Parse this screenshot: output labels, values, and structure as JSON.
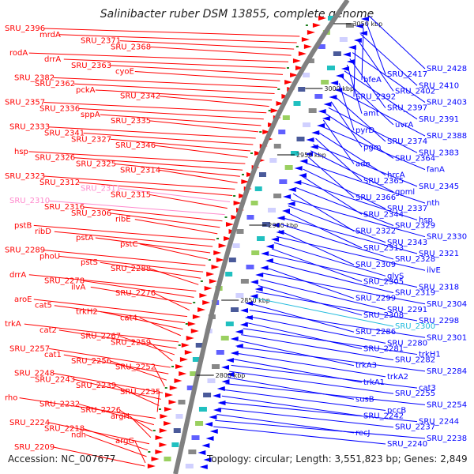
{
  "title": "Salinibacter ruber DSM 13855, complete genome",
  "accession": "Accession: NC_007677",
  "topology": "Topology: circular; Length: 3,551,823 bp; Genes: 2,849",
  "colors": {
    "forward_strand": "#ff0000",
    "reverse_strand": "#0000ff",
    "highlight_pink": "#ff88cc",
    "highlight_cyan": "#22bbdd",
    "genome_circle": "#808080"
  },
  "kbp_markers": [
    "3050 kbp",
    "3000 kbp",
    "2950 kbp",
    "2900 kbp",
    "2850 kbp",
    "2800 kbp"
  ],
  "left_labels": [
    "SRU_2396",
    "mrdA",
    "SRU_2371",
    "SRU_2368",
    "rodA",
    "drrA",
    "SRU_2363",
    "cyoE",
    "SRU_2382",
    "SRU_2362",
    "pckA",
    "SRU_2342",
    "SRU_2357",
    "SRU_2336",
    "sppA",
    "SRU_2335",
    "SRU_2333",
    "SRU_2341",
    "SRU_2327",
    "SRU_2346",
    "hsp",
    "SRU_2326",
    "SRU_2325",
    "SRU_2314",
    "SRU_2323",
    "SRU_2312",
    "SRU_2311",
    "SRU_2315",
    "SRU_2310",
    "SRU_2316",
    "SRU_2306",
    "ribE",
    "pstB",
    "ribD",
    "pstA",
    "pstC",
    "SRU_2289",
    "phoU",
    "pstS",
    "SRU_2288",
    "drrA",
    "SRU_2278",
    "ilvA",
    "SRU_2276",
    "aroE",
    "cat5",
    "trkH2",
    "cat4",
    "trkA",
    "cat2",
    "SRU_2267",
    "SRU_2259",
    "SRU_2257",
    "cat1",
    "SRU_2256",
    "SRU_2252",
    "SRU_2248",
    "SRU_2243",
    "SRU_2239",
    "SRU_2235",
    "rho",
    "SRU_2232",
    "SRU_2226",
    "argH",
    "SRU_2224",
    "SRU_2218",
    "ndh",
    "argG",
    "SRU_2209"
  ],
  "right_labels": [
    "SRU_2428",
    "SRU_2417",
    "bfeA",
    "SRU_2410",
    "SRU_2402",
    "SRU_2392",
    "SRU_2403",
    "SRU_2397",
    "amt",
    "SRU_2391",
    "uvrA",
    "pyrD",
    "SRU_2388",
    "SRU_2374",
    "pgm",
    "SRU_2383",
    "SRU_2364",
    "ade",
    "fanA",
    "hrcA",
    "SRU_2365",
    "SRU_2345",
    "gpml",
    "SRU_2366",
    "nth",
    "SRU_2337",
    "SRU_2344",
    "hsp",
    "SRU_2329",
    "SRU_2322",
    "SRU_2330",
    "SRU_2343",
    "SRU_2313",
    "SRU_2321",
    "SRU_2328",
    "SRU_2309",
    "ilvE",
    "glyS",
    "SRU_2305",
    "SRU_2318",
    "SRU_2319",
    "SRU_2299",
    "SRU_2304",
    "SRU_2291",
    "SRU_2308",
    "SRU_2298",
    "SRU_2300",
    "SRU_2286",
    "SRU_2301",
    "SRU_2280",
    "SRU_2281",
    "trkH1",
    "SRU_2282",
    "trkA3",
    "SRU_2284",
    "trkA2",
    "trkA1",
    "cat3",
    "SRU_2255",
    "susB",
    "SRU_2254",
    "pccB",
    "SRU_2242",
    "SRU_2244",
    "SRU_2237",
    "recJ",
    "SRU_2238",
    "SRU_2240"
  ]
}
